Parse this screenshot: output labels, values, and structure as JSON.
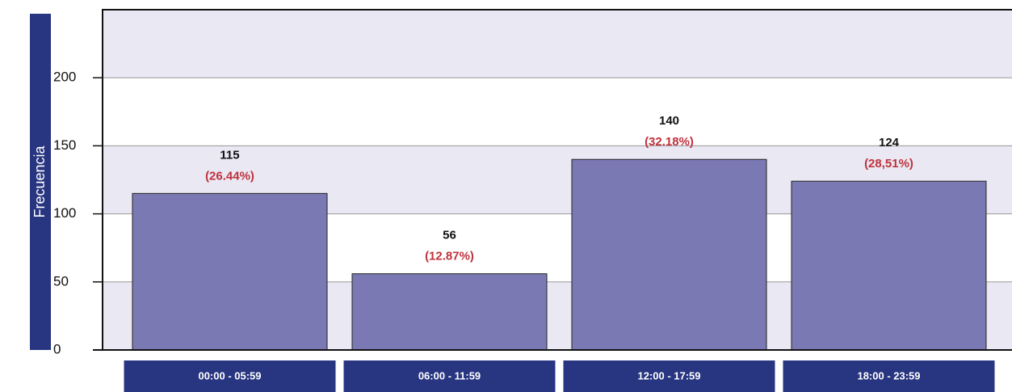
{
  "chart_data": {
    "type": "bar",
    "ylabel": "Frecuencia",
    "categories": [
      "00:00 - 05:59",
      "06:00 - 11:59",
      "12:00 - 17:59",
      "18:00 - 23:59"
    ],
    "values": [
      115,
      56,
      140,
      124
    ],
    "percent_labels": [
      "(26.44%)",
      "(12.87%)",
      "(32.18%)",
      "(28,51%)"
    ],
    "color": "#7b79b3",
    "ylim": [
      0,
      250
    ],
    "yticks": [
      0,
      50,
      100,
      150,
      200
    ],
    "grid": true
  }
}
